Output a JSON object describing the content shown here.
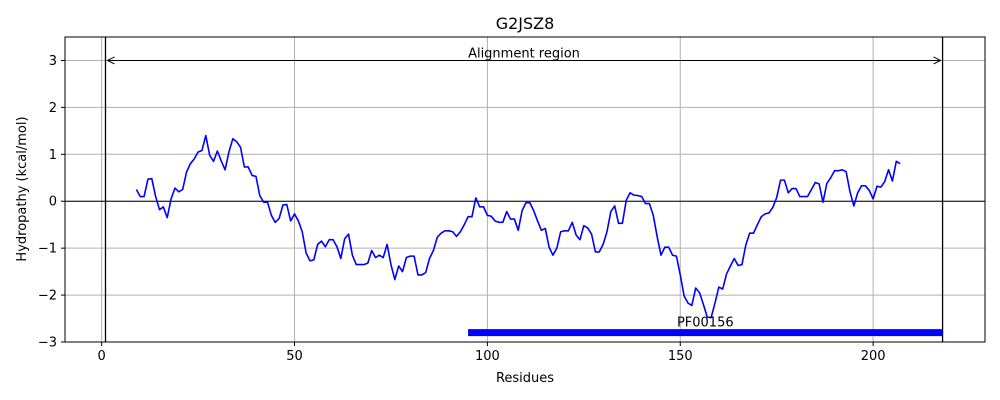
{
  "chart_data": {
    "type": "line",
    "title": "G2JSZ8",
    "xlabel": "Residues",
    "ylabel": "Hydropathy (kcal/mol)",
    "xlim": [
      -9.5,
      229
    ],
    "ylim": [
      -3,
      3.5
    ],
    "xticks": [
      0,
      50,
      100,
      150,
      200
    ],
    "yticks": [
      -3,
      -2,
      -1,
      0,
      1,
      2,
      3
    ],
    "grid": true,
    "colors": {
      "line": "#0000ff",
      "domain_bar": "#0000ff",
      "grid": "#b0b0b0",
      "axis": "#000000"
    },
    "annotations": {
      "alignment_region": {
        "label": "Alignment region",
        "start": 1,
        "end": 218,
        "y": 3
      },
      "domain": {
        "label": "PF00156",
        "start": 95,
        "end": 218,
        "y": -2.8
      },
      "zero_line": 0
    },
    "series": [
      {
        "x": [
          9,
          10,
          11,
          12,
          13,
          14,
          15,
          16,
          17,
          18,
          19,
          20,
          21,
          22,
          23,
          24,
          25,
          26,
          27,
          28,
          29,
          30,
          31,
          32,
          33,
          34,
          35,
          36,
          37,
          38,
          39,
          40,
          41,
          42,
          43,
          44,
          45,
          46,
          47,
          48,
          49,
          50,
          51,
          52,
          53,
          54,
          55,
          56,
          57,
          58,
          59,
          60,
          61,
          62,
          63,
          64,
          65,
          66,
          67,
          68,
          69,
          70,
          71,
          72,
          73,
          74,
          75,
          76,
          77,
          78,
          79,
          80,
          81,
          82,
          83,
          84,
          85,
          86,
          87,
          88,
          89,
          90,
          91,
          92,
          93,
          94,
          95,
          96,
          97,
          98,
          99,
          100,
          101,
          102,
          103,
          104,
          105,
          106,
          107,
          108,
          109,
          110,
          111,
          112,
          113,
          114,
          115,
          116,
          117,
          118,
          119,
          120,
          121,
          122,
          123,
          124,
          125,
          126,
          127,
          128,
          129,
          130,
          131,
          132,
          133,
          134,
          135,
          136,
          137,
          138,
          139,
          140,
          141,
          142,
          143,
          144,
          145,
          146,
          147,
          148,
          149,
          150,
          151,
          152,
          153,
          154,
          155,
          156,
          157,
          158,
          159,
          160,
          161,
          162,
          163,
          164,
          165,
          166,
          167,
          168,
          169,
          170,
          171,
          172,
          173,
          174,
          175,
          176,
          177,
          178,
          179,
          180,
          181,
          182,
          183,
          184,
          185,
          186,
          187,
          188,
          189,
          190,
          191,
          192,
          193,
          194,
          195,
          196,
          197,
          198,
          199,
          200,
          201,
          202,
          203,
          204,
          205,
          206,
          207
        ],
        "y": [
          0.25,
          0.1,
          0.1,
          0.47,
          0.48,
          0.1,
          -0.18,
          -0.12,
          -0.35,
          0.05,
          0.28,
          0.2,
          0.25,
          0.62,
          0.8,
          0.9,
          1.05,
          1.08,
          1.4,
          0.98,
          0.85,
          1.07,
          0.86,
          0.67,
          1.05,
          1.33,
          1.27,
          1.15,
          0.73,
          0.73,
          0.55,
          0.53,
          0.12,
          -0.02,
          -0.02,
          -0.3,
          -0.45,
          -0.37,
          -0.08,
          -0.07,
          -0.42,
          -0.27,
          -0.42,
          -0.65,
          -1.1,
          -1.27,
          -1.25,
          -0.92,
          -0.85,
          -0.97,
          -0.82,
          -0.82,
          -0.97,
          -1.22,
          -0.8,
          -0.7,
          -1.15,
          -1.35,
          -1.35,
          -1.35,
          -1.32,
          -1.05,
          -1.2,
          -1.15,
          -1.2,
          -0.92,
          -1.35,
          -1.67,
          -1.38,
          -1.5,
          -1.2,
          -1.17,
          -1.17,
          -1.57,
          -1.57,
          -1.52,
          -1.22,
          -1.05,
          -0.77,
          -0.68,
          -0.63,
          -0.63,
          -0.65,
          -0.75,
          -0.65,
          -0.5,
          -0.33,
          -0.33,
          0.07,
          -0.12,
          -0.12,
          -0.3,
          -0.32,
          -0.42,
          -0.45,
          -0.45,
          -0.22,
          -0.38,
          -0.38,
          -0.62,
          -0.2,
          -0.03,
          -0.03,
          -0.2,
          -0.42,
          -0.62,
          -0.58,
          -0.98,
          -1.15,
          -1.0,
          -0.65,
          -0.63,
          -0.63,
          -0.45,
          -0.72,
          -0.82,
          -0.52,
          -0.57,
          -0.7,
          -1.08,
          -1.08,
          -0.92,
          -0.65,
          -0.22,
          -0.1,
          -0.47,
          -0.47,
          0.02,
          0.18,
          0.13,
          0.12,
          0.1,
          -0.05,
          -0.05,
          -0.3,
          -0.75,
          -1.15,
          -0.98,
          -0.98,
          -1.15,
          -1.17,
          -1.57,
          -2.02,
          -2.17,
          -2.22,
          -1.85,
          -1.95,
          -2.2,
          -2.47,
          -2.48,
          -2.17,
          -1.83,
          -1.87,
          -1.55,
          -1.38,
          -1.22,
          -1.37,
          -1.35,
          -0.93,
          -0.68,
          -0.68,
          -0.5,
          -0.33,
          -0.27,
          -0.25,
          -0.13,
          0.08,
          0.45,
          0.45,
          0.18,
          0.27,
          0.27,
          0.1,
          0.1,
          0.1,
          0.25,
          0.4,
          0.37,
          -0.02,
          0.38,
          0.5,
          0.65,
          0.65,
          0.67,
          0.63,
          0.2,
          -0.1,
          0.18,
          0.33,
          0.33,
          0.23,
          0.05,
          0.32,
          0.3,
          0.42,
          0.67,
          0.43,
          0.85,
          0.8
        ]
      }
    ]
  }
}
